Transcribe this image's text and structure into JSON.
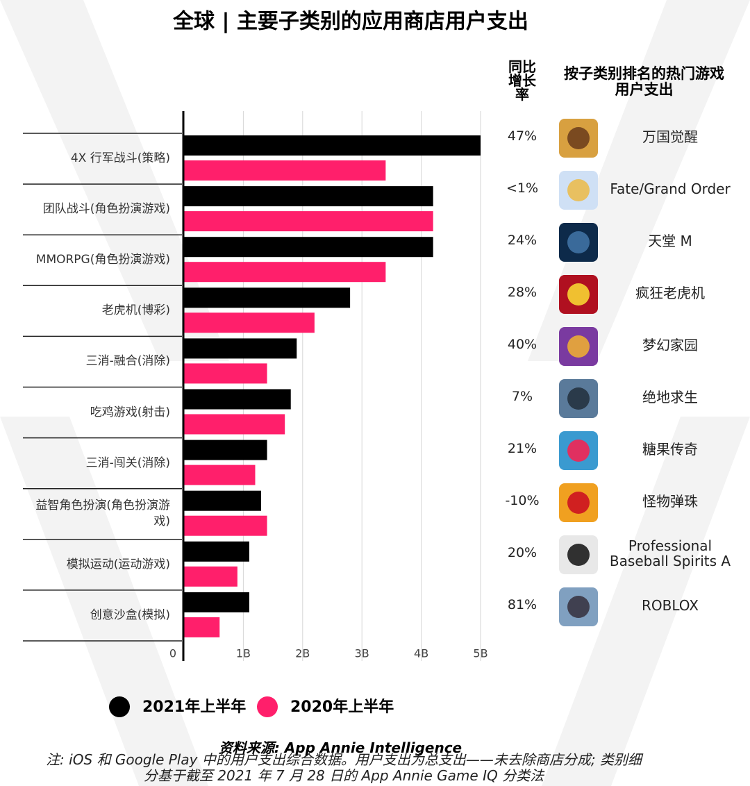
{
  "chart_data": {
    "type": "bar",
    "orientation": "horizontal",
    "title": "全球 | 主要子类别的应用商店用户支出",
    "categories": [
      "4X 行军战斗(策略)",
      "团队战斗(角色扮演游戏)",
      "MMORPG(角色扮演游戏)",
      "老虎机(博彩)",
      "三消-融合(消除)",
      "吃鸡游戏(射击)",
      "三消-闯关(消除)",
      "益智角色扮演(角色扮演游戏)",
      "模拟运动(运动游戏)",
      "创意沙盒(模拟)"
    ],
    "series": [
      {
        "name": "2021年上半年",
        "color": "#000000",
        "values": [
          5.0,
          4.2,
          4.2,
          2.8,
          1.9,
          1.8,
          1.4,
          1.3,
          1.1,
          1.1
        ]
      },
      {
        "name": "2020年上半年",
        "color": "#ff1f6b",
        "values": [
          3.4,
          4.2,
          3.4,
          2.2,
          1.4,
          1.7,
          1.2,
          1.4,
          0.9,
          0.6
        ]
      }
    ],
    "xlim": [
      0,
      5
    ],
    "xticks": [
      0,
      {
        "value": 1,
        "label": "1B"
      },
      {
        "value": 2,
        "label": "2B"
      },
      {
        "value": 3,
        "label": "3B"
      },
      {
        "value": 4,
        "label": "4B"
      },
      {
        "value": 5,
        "label": "5B"
      }
    ],
    "grid": true,
    "legend_position": "bottom",
    "table": {
      "headers": [
        "同比增长率",
        "按子类别排名的热门游戏用户支出"
      ],
      "rows": [
        {
          "growth": "47%",
          "game": "万国觉醒"
        },
        {
          "growth": "<1%",
          "game": "Fate/Grand Order"
        },
        {
          "growth": "24%",
          "game": "天堂 M"
        },
        {
          "growth": "28%",
          "game": "疯狂老虎机"
        },
        {
          "growth": "40%",
          "game": "梦幻家园"
        },
        {
          "growth": "7%",
          "game": "绝地求生"
        },
        {
          "growth": "21%",
          "game": "糖果传奇"
        },
        {
          "growth": "-10%",
          "game": "怪物弹珠"
        },
        {
          "growth": "20%",
          "game": "Professional Baseball Spirits A"
        },
        {
          "growth": "81%",
          "game": "ROBLOX"
        }
      ]
    },
    "source": "资料来源: App Annie Intelligence",
    "note": "注: iOS 和 Google Play 中的用户支出综合数据。用户支出为总支出——未去除商店分成; 类别细分基于截至 2021 年 7 月 28 日的 App Annie Game IQ 分类法"
  }
}
